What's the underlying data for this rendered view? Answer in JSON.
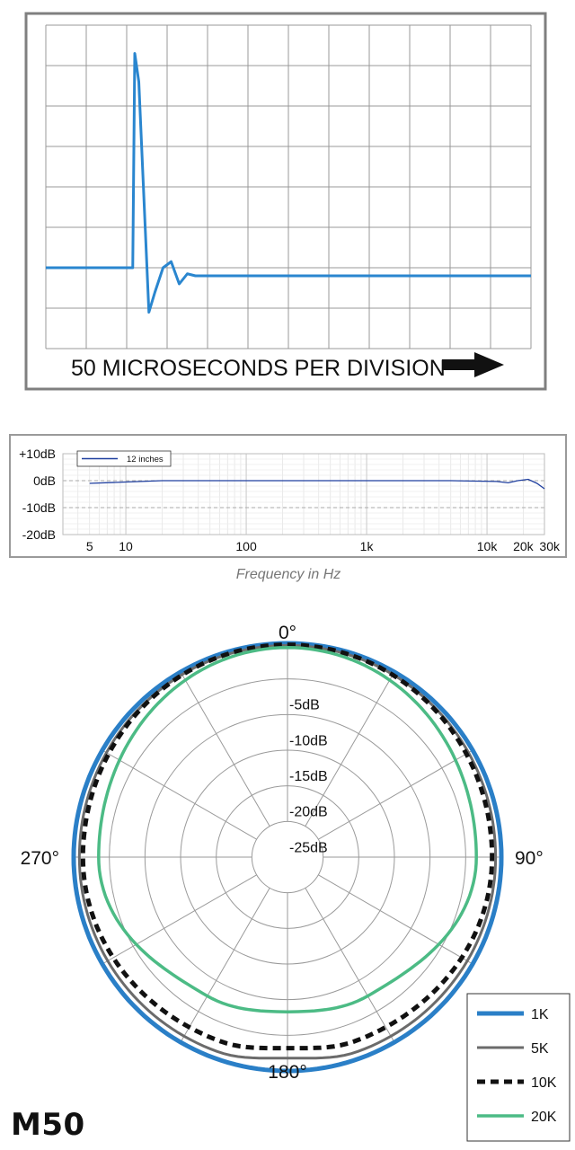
{
  "chart_data": [
    {
      "type": "line",
      "title": "",
      "xlabel": "50 MICROSECONDS PER DIVISION",
      "ylabel": "",
      "x_unit": "divisions",
      "grid": true,
      "xlim": [
        0,
        12
      ],
      "ylim": [
        -2,
        6
      ],
      "series": [
        {
          "values_x": [
            0,
            1.9,
            2.15,
            2.2,
            2.3,
            2.55,
            2.7,
            2.9,
            3.1,
            3.3,
            3.5,
            3.7,
            4,
            12
          ],
          "values_y": [
            0,
            0,
            0,
            5.3,
            4.6,
            -1.1,
            -0.6,
            0,
            0.15,
            -0.4,
            -0.15,
            -0.2,
            -0.2,
            -0.2
          ]
        }
      ]
    },
    {
      "type": "line",
      "title": "",
      "xlabel": "Frequency in Hz",
      "ylabel": "",
      "x_scale": "log",
      "grid": true,
      "xlim": [
        3,
        30000
      ],
      "ylim": [
        -20,
        10
      ],
      "x_ticks": [
        "5",
        "10",
        "100",
        "1k",
        "10k",
        "20k",
        "30k"
      ],
      "y_ticks": [
        "+10dB",
        "0dB",
        "-10dB",
        "-20dB"
      ],
      "legend": "top-left",
      "series": [
        {
          "name": "12 inches",
          "x": [
            5,
            10,
            20,
            50,
            100,
            1000,
            5000,
            12000,
            15000,
            18000,
            22000,
            26000,
            30000
          ],
          "values": [
            -1,
            -0.5,
            0,
            0,
            0,
            0,
            0,
            -0.3,
            -0.8,
            0,
            0.5,
            -1,
            -3
          ]
        }
      ]
    },
    {
      "type": "polar",
      "title": "",
      "angle_labels": [
        "0°",
        "90°",
        "180°",
        "270°"
      ],
      "radial_labels": [
        "-5dB",
        "-10dB",
        "-15dB",
        "-20dB",
        "-25dB"
      ],
      "rlim": [
        -30,
        0
      ],
      "legend": "bottom-right",
      "series": [
        {
          "name": "1K",
          "color": "#2a7fc7",
          "angles": [
            0,
            90,
            180,
            270
          ],
          "values": [
            0,
            0,
            0,
            0
          ]
        },
        {
          "name": "5K",
          "color": "#6b6b6b",
          "angles": [
            0,
            90,
            160,
            180,
            270
          ],
          "values": [
            -0.3,
            -0.8,
            -1,
            -1.8,
            -0.8
          ]
        },
        {
          "name": "10K",
          "color": "#111111",
          "angles": [
            0,
            90,
            160,
            180,
            270
          ],
          "values": [
            -0.2,
            -1.3,
            -2.5,
            -3.2,
            -1.3
          ]
        },
        {
          "name": "20K",
          "color": "#4cbb85",
          "angles": [
            0,
            90,
            150,
            180,
            270
          ],
          "values": [
            -0.6,
            -3.5,
            -7.5,
            -8.3,
            -3.5
          ]
        }
      ]
    }
  ],
  "brand": "M50"
}
